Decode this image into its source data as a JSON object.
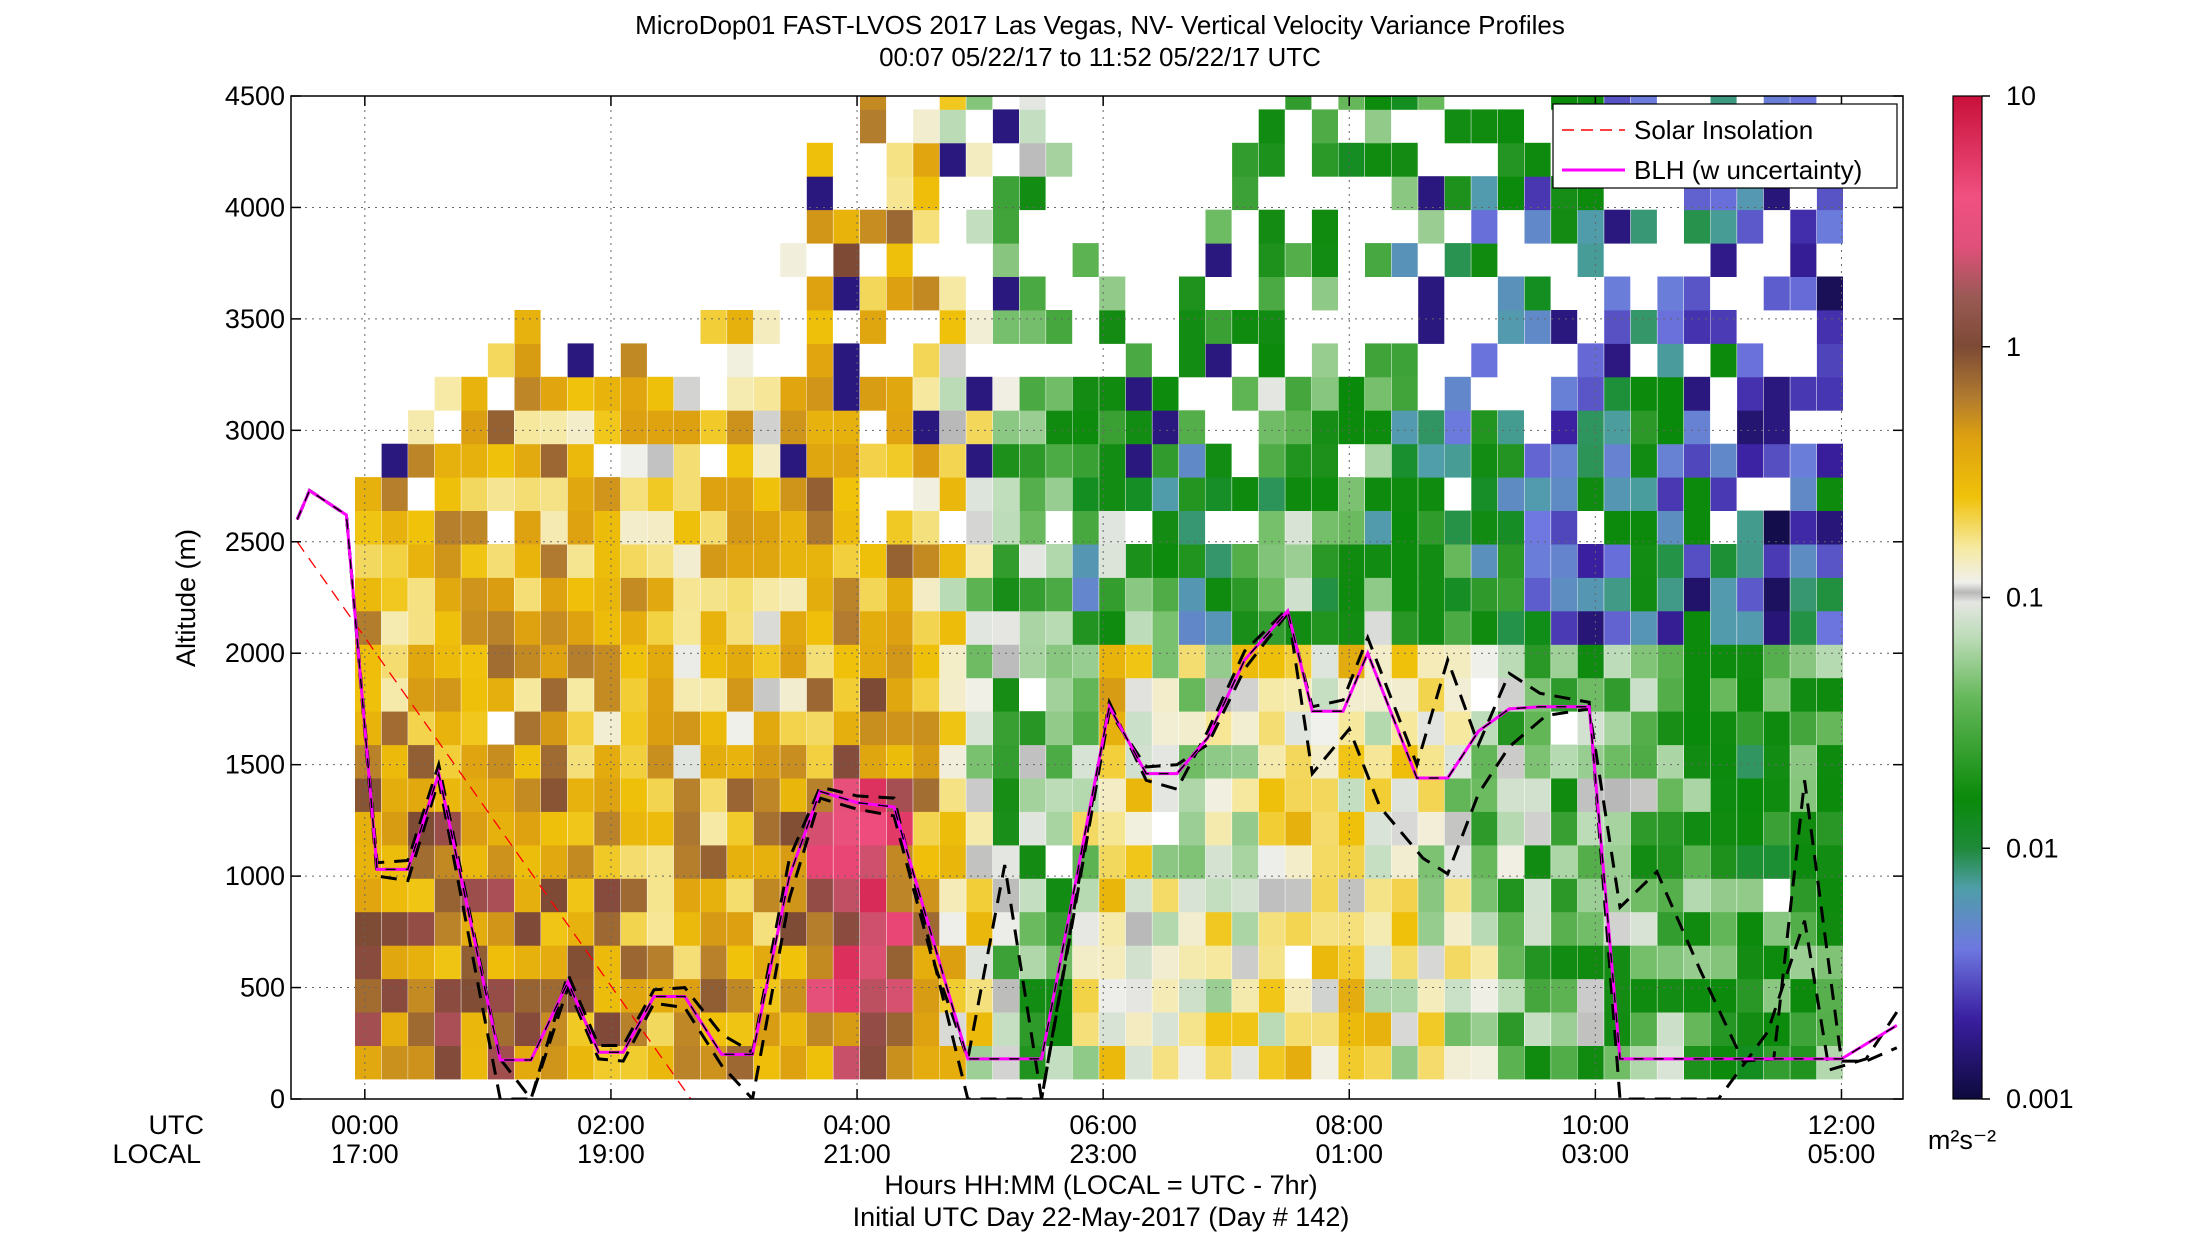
{
  "chart_data": {
    "type": "heatmap",
    "title": "MicroDop01 FAST-LVOS 2017 Las Vegas, NV- Vertical Velocity Variance Profiles",
    "subtitle": "00:07 05/22/17 to 11:52 05/22/17  UTC",
    "ylabel": "Altitude (m)",
    "xlabel": "Hours HH:MM  (LOCAL = UTC - 7hr)",
    "xlabel2": "Initial UTC Day 22-May-2017 (Day # 142)",
    "xaxis_row_labels": [
      "UTC",
      "LOCAL"
    ],
    "x_range_hours_utc": [
      -0.6,
      12.5
    ],
    "ylim": [
      0,
      4500
    ],
    "yticks": [
      "0",
      "500",
      "1000",
      "1500",
      "2000",
      "2500",
      "3000",
      "3500",
      "4000",
      "4500"
    ],
    "xticks": [
      {
        "utc": "00:00",
        "local": "17:00"
      },
      {
        "utc": "02:00",
        "local": "19:00"
      },
      {
        "utc": "04:00",
        "local": "21:00"
      },
      {
        "utc": "06:00",
        "local": "23:00"
      },
      {
        "utc": "08:00",
        "local": "01:00"
      },
      {
        "utc": "10:00",
        "local": "03:00"
      },
      {
        "utc": "12:00",
        "local": "05:00"
      }
    ],
    "grid": true,
    "colorbar": {
      "scale": "log",
      "range": [
        0.001,
        10
      ],
      "tick_labels": [
        "0.001",
        "0.01",
        "0.1",
        "1",
        "10"
      ],
      "unit": "m²s⁻²",
      "colors": [
        "#0d0a3d",
        "#3a1fa0",
        "#6e78e0",
        "#4f9ea8",
        "#1f8a3a",
        "#0a8a0a",
        "#66b85a",
        "#bcdcb8",
        "#ececea",
        "#f6e9a0",
        "#f0c20a",
        "#dda010",
        "#b07a30",
        "#7d4a35",
        "#c85070",
        "#f05080",
        "#c8103a"
      ]
    },
    "legend": {
      "position": "top-right",
      "entries": [
        {
          "label": "Solar Insolation",
          "style": "dashed",
          "color": "#ff0000"
        },
        {
          "label": "BLH (w uncertainty)",
          "style": "solid",
          "color": "#ff00ff"
        }
      ]
    },
    "blh": {
      "x": [
        -0.55,
        -0.45,
        -0.15,
        0.1,
        0.35,
        0.6,
        1.1,
        1.35,
        1.65,
        1.9,
        2.1,
        2.35,
        2.6,
        2.9,
        3.15,
        3.45,
        3.7,
        4.0,
        4.3,
        4.9,
        5.5,
        6.05,
        6.35,
        6.6,
        6.85,
        7.15,
        7.5,
        7.7,
        7.95,
        8.15,
        8.55,
        8.8,
        9.05,
        9.3,
        9.55,
        9.95,
        10.2,
        12.0,
        12.45
      ],
      "y": [
        2600,
        2730,
        2620,
        1030,
        1030,
        1460,
        175,
        175,
        525,
        210,
        210,
        460,
        460,
        200,
        200,
        1000,
        1380,
        1330,
        1310,
        180,
        180,
        1760,
        1460,
        1460,
        1620,
        1970,
        2190,
        1740,
        1740,
        2000,
        1440,
        1440,
        1650,
        1750,
        1760,
        1760,
        180,
        180,
        330
      ]
    },
    "blh_uncertainty": [
      {
        "x": [
          -0.55,
          -0.45,
          -0.15,
          0.1,
          0.35,
          0.6,
          1.1,
          1.35,
          1.65,
          1.9,
          2.1,
          2.35,
          2.6,
          2.9,
          3.15,
          3.45,
          3.7,
          4.0,
          4.3,
          4.6,
          4.9,
          5.2,
          5.5,
          6.05,
          6.35,
          6.6,
          6.85,
          7.15,
          7.5,
          7.7,
          8.0,
          8.25,
          8.6,
          8.8,
          9.05,
          9.3,
          9.6,
          9.95,
          10.2,
          10.5,
          10.85,
          11.2,
          11.45,
          11.7,
          12.0,
          12.2,
          12.45
        ],
        "y": [
          2600,
          2730,
          2620,
          1000,
          980,
          1430,
          0,
          0,
          500,
          180,
          170,
          430,
          410,
          150,
          0,
          900,
          1350,
          1300,
          1270,
          650,
          180,
          1050,
          0,
          1780,
          1430,
          1390,
          1650,
          2010,
          2200,
          1460,
          1660,
          1310,
          1080,
          1010,
          1370,
          1580,
          1720,
          1750,
          860,
          1020,
          580,
          170,
          180,
          1430,
          170,
          170,
          230
        ]
      },
      {
        "x": [
          -0.55,
          -0.45,
          -0.15,
          0.1,
          0.35,
          0.6,
          1.1,
          1.35,
          1.65,
          1.9,
          2.1,
          2.35,
          2.6,
          2.9,
          3.15,
          3.45,
          3.7,
          4.0,
          4.3,
          4.9,
          5.2,
          5.5,
          6.05,
          6.35,
          6.6,
          6.85,
          7.15,
          7.5,
          7.7,
          7.95,
          8.15,
          8.55,
          8.8,
          9.05,
          9.3,
          9.55,
          9.95,
          10.2,
          10.6,
          11.0,
          11.4,
          11.7,
          11.9,
          12.2,
          12.45
        ],
        "y": [
          2600,
          2730,
          2620,
          1060,
          1070,
          1500,
          180,
          0,
          560,
          240,
          240,
          490,
          500,
          290,
          210,
          1080,
          1400,
          1360,
          1350,
          0,
          0,
          0,
          1740,
          1490,
          1500,
          1590,
          1930,
          2180,
          1760,
          1790,
          2070,
          1500,
          1970,
          1590,
          1910,
          1820,
          1780,
          0,
          0,
          0,
          300,
          800,
          130,
          180,
          390
        ]
      }
    ],
    "solar_insolation": {
      "x": [
        -0.55,
        2.65
      ],
      "y": [
        2500,
        0
      ]
    },
    "heatmap_cells": "~56 time columns x 30 altitude bins (150 m each) of vertical velocity variance; values (m²s⁻²) range ~0.001 to ~4, approximated"
  }
}
